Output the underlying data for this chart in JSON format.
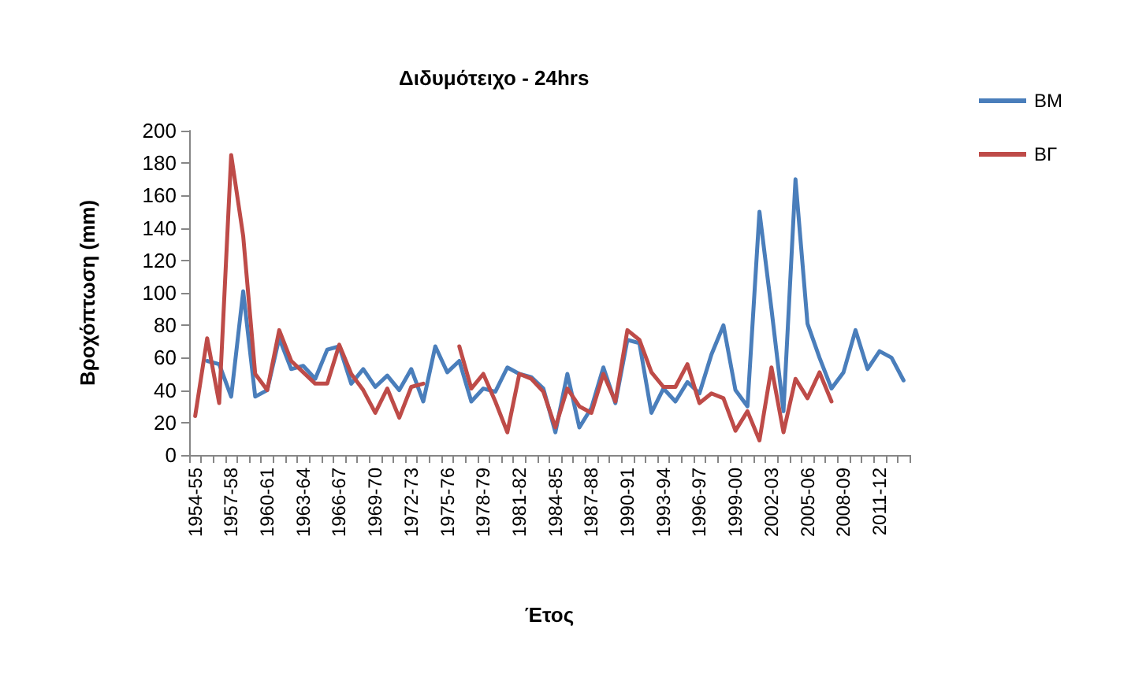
{
  "chart_data": {
    "type": "line",
    "title": "Διδυμότειχο - 24hrs",
    "xlabel": "Έτος",
    "ylabel": "Βροχόπτωση (mm)",
    "categories": [
      "1954-55",
      null,
      null,
      "1957-58",
      null,
      null,
      "1960-61",
      null,
      null,
      "1963-64",
      null,
      null,
      "1966-67",
      null,
      null,
      "1969-70",
      null,
      null,
      "1972-73",
      null,
      null,
      "1975-76",
      null,
      null,
      "1978-79",
      null,
      null,
      "1981-82",
      null,
      null,
      "1984-85",
      null,
      null,
      "1987-88",
      null,
      null,
      "1990-91",
      null,
      null,
      "1993-94",
      null,
      null,
      "1996-97",
      null,
      null,
      "1999-00",
      null,
      null,
      "2002-03",
      null,
      null,
      "2005-06",
      null,
      null,
      "2008-09",
      null,
      null,
      "2011-12",
      null,
      null
    ],
    "series": [
      {
        "name": "ΒΜ",
        "color": "#4a7ebb",
        "values": [
          null,
          58,
          56,
          36,
          101,
          36,
          40,
          72,
          53,
          55,
          47,
          65,
          67,
          44,
          53,
          42,
          49,
          40,
          53,
          33,
          67,
          51,
          58,
          33,
          41,
          39,
          54,
          50,
          48,
          41,
          14,
          50,
          17,
          29,
          54,
          32,
          71,
          69,
          26,
          41,
          33,
          45,
          38,
          62,
          80,
          40,
          30,
          150,
          90,
          27,
          170,
          81,
          60,
          41,
          51,
          77,
          53,
          64,
          60,
          46
        ]
      },
      {
        "name": "ΒΓ",
        "color": "#be4b48",
        "values": [
          24,
          72,
          32,
          185,
          135,
          50,
          40,
          77,
          58,
          51,
          44,
          44,
          68,
          50,
          40,
          26,
          41,
          23,
          42,
          44,
          null,
          null,
          67,
          41,
          50,
          33,
          14,
          50,
          47,
          39,
          17,
          41,
          30,
          26,
          50,
          33,
          77,
          71,
          51,
          42,
          42,
          56,
          32,
          38,
          35,
          15,
          27,
          9,
          54,
          14,
          47,
          35,
          51,
          33,
          null,
          null,
          null,
          null,
          null,
          null
        ]
      }
    ],
    "ylim": [
      0,
      200
    ],
    "yticks": [
      0,
      20,
      40,
      60,
      80,
      100,
      120,
      140,
      160,
      180,
      200
    ],
    "grid": false,
    "legend": "top right",
    "marker": "none",
    "line_style": "solid"
  }
}
